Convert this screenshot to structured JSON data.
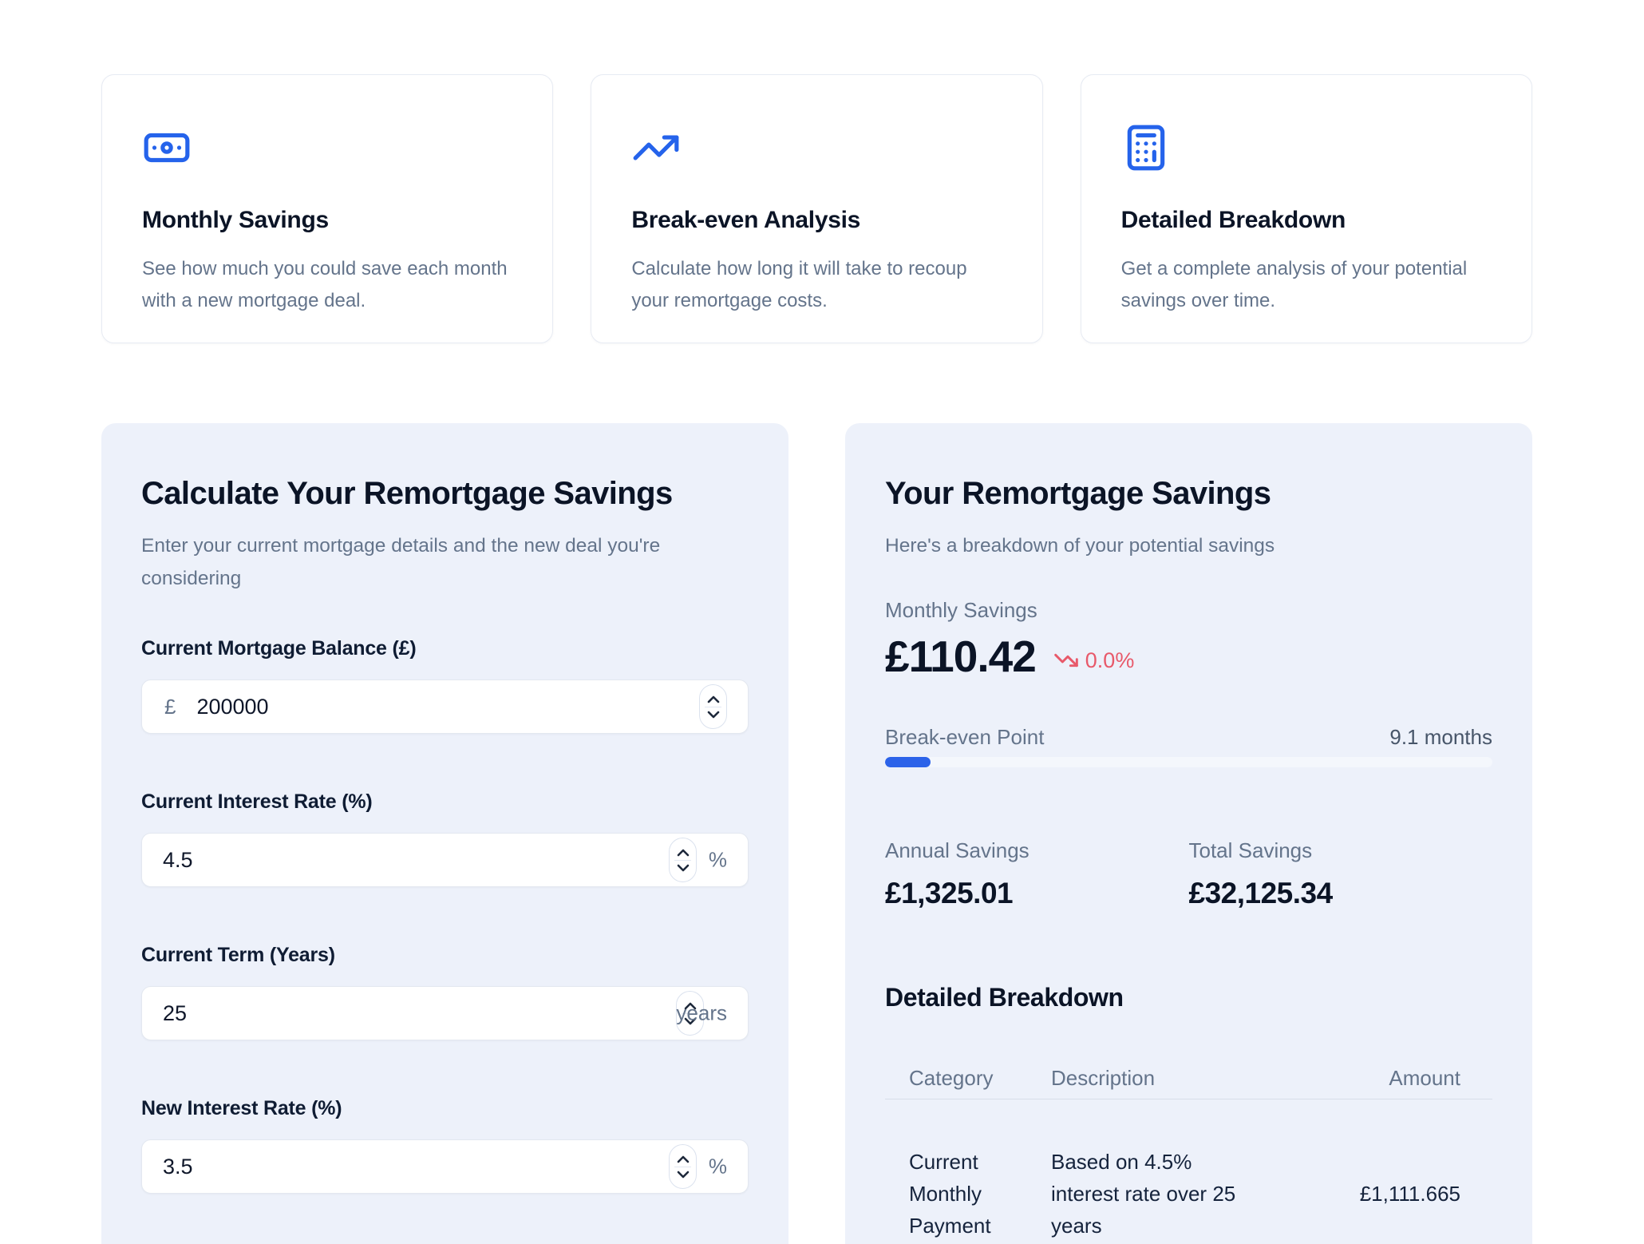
{
  "colors": {
    "accent_blue": "#2563eb",
    "progress_blue": "#2c63e9",
    "negative_red": "#e8596a",
    "card_bg": "#edf1fa"
  },
  "feature_cards": [
    {
      "icon": "banknote-icon",
      "title": "Monthly Savings",
      "description": "See how much you could save each month with a new mortgage deal."
    },
    {
      "icon": "trending-up-icon",
      "title": "Break-even Analysis",
      "description": "Calculate how long it will take to recoup your remortgage costs."
    },
    {
      "icon": "calculator-icon",
      "title": "Detailed Breakdown",
      "description": "Get a complete analysis of your potential savings over time."
    }
  ],
  "calculator": {
    "title": "Calculate Your Remortgage Savings",
    "subtitle": "Enter your current mortgage details and the new deal you're considering",
    "fields": [
      {
        "label": "Current Mortgage Balance (£)",
        "prefix": "£",
        "value": "200000",
        "suffix": ""
      },
      {
        "label": "Current Interest Rate (%)",
        "prefix": "",
        "value": "4.5",
        "suffix": "%"
      },
      {
        "label": "Current Term (Years)",
        "prefix": "",
        "value": "25",
        "suffix": "years"
      },
      {
        "label": "New Interest Rate (%)",
        "prefix": "",
        "value": "3.5",
        "suffix": "%"
      }
    ]
  },
  "results": {
    "title": "Your Remortgage Savings",
    "subtitle": "Here's a breakdown of your potential savings",
    "monthly_savings_label": "Monthly Savings",
    "monthly_savings_value": "£110.42",
    "monthly_savings_change": "0.0%",
    "breakeven_label": "Break-even Point",
    "breakeven_value": "9.1 months",
    "breakeven_progress_pct": 7.5,
    "annual_savings_label": "Annual Savings",
    "annual_savings_value": "£1,325.01",
    "total_savings_label": "Total Savings",
    "total_savings_value": "£32,125.34",
    "breakdown_title": "Detailed Breakdown",
    "table": {
      "headers": [
        "Category",
        "Description",
        "Amount"
      ],
      "rows": [
        {
          "category": "Current Monthly Payment",
          "description": "Based on 4.5% interest rate over 25 years",
          "amount": "£1,111.665"
        }
      ]
    }
  }
}
